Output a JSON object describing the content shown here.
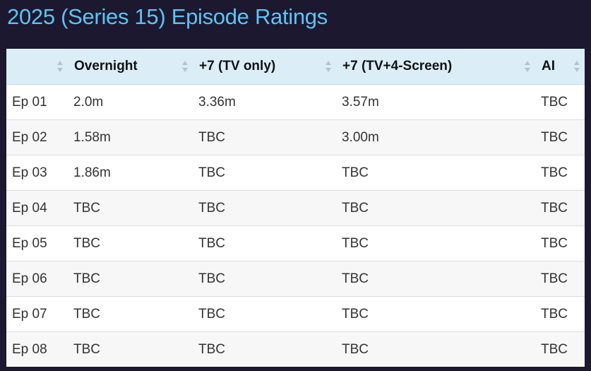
{
  "page": {
    "title": "2025 (Series 15) Episode Ratings"
  },
  "table": {
    "headers": [
      {
        "label": "",
        "sort_icon": "sort-up-down-icon"
      },
      {
        "label": "Overnight",
        "sort_icon": "sort-up-down-icon"
      },
      {
        "label": "+7 (TV only)",
        "sort_icon": "sort-up-down-icon"
      },
      {
        "label": "+7 (TV+4-Screen)",
        "sort_icon": "sort-up-down-icon"
      },
      {
        "label": "AI",
        "sort_icon": "sort-up-down-icon"
      }
    ],
    "rows": [
      [
        "Ep 01",
        "2.0m",
        "3.36m",
        "3.57m",
        "TBC"
      ],
      [
        "Ep 02",
        "1.58m",
        "TBC",
        "3.00m",
        "TBC"
      ],
      [
        "Ep 03",
        "1.86m",
        "TBC",
        "TBC",
        "TBC"
      ],
      [
        "Ep 04",
        "TBC",
        "TBC",
        "TBC",
        "TBC"
      ],
      [
        "Ep 05",
        "TBC",
        "TBC",
        "TBC",
        "TBC"
      ],
      [
        "Ep 06",
        "TBC",
        "TBC",
        "TBC",
        "TBC"
      ],
      [
        "Ep 07",
        "TBC",
        "TBC",
        "TBC",
        "TBC"
      ],
      [
        "Ep 08",
        "TBC",
        "TBC",
        "TBC",
        "TBC"
      ]
    ]
  },
  "colors": {
    "background": "#1c1830",
    "title": "#5cc4f4",
    "header_bg": "#dbeef8",
    "row_alt_bg": "#f7f7f7"
  }
}
